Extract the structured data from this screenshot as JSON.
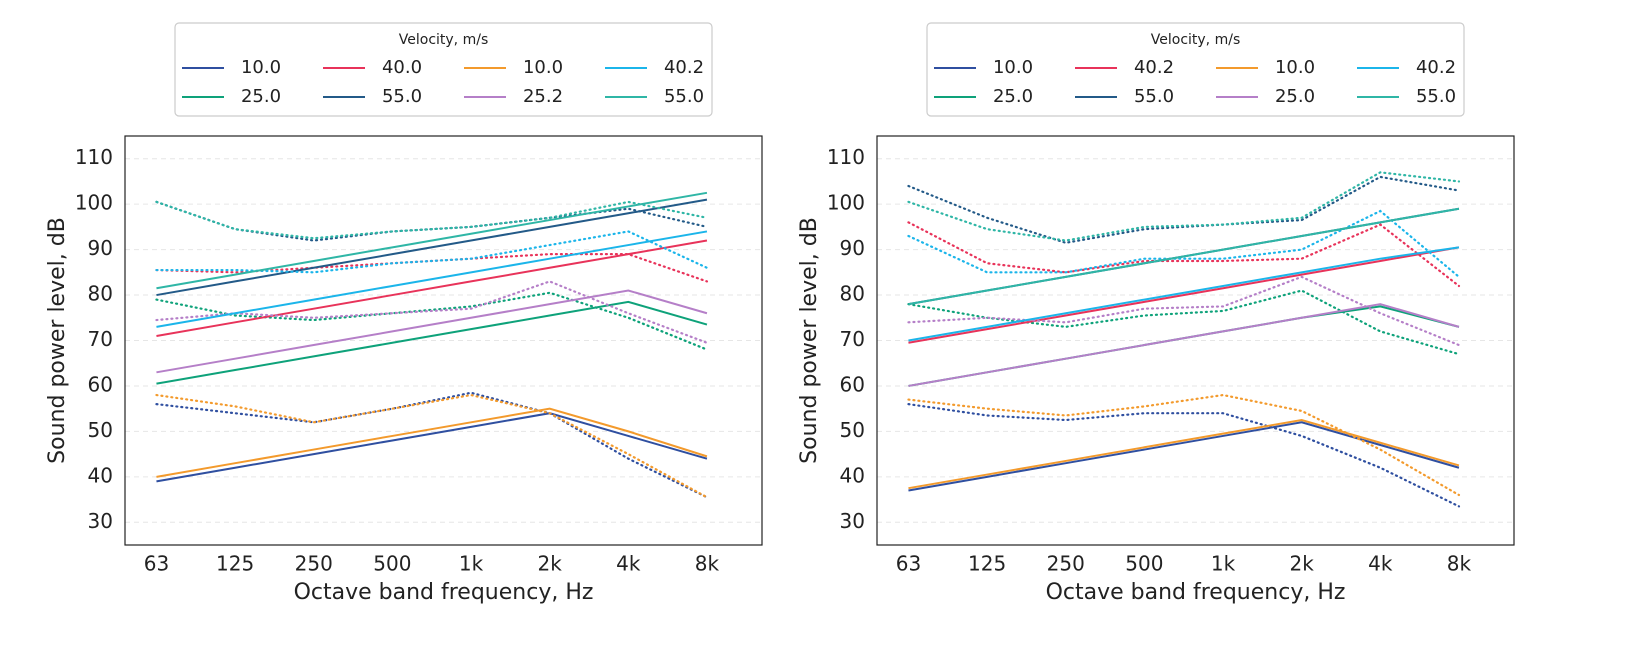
{
  "chart_data": [
    {
      "type": "line",
      "legend_title": "Velocity, m/s",
      "xlabel": "Octave band frequency, Hz",
      "ylabel": "Sound power level, dB",
      "categories": [
        "63",
        "125",
        "250",
        "500",
        "1k",
        "2k",
        "4k",
        "8k"
      ],
      "ylim": [
        25,
        115
      ],
      "yticks": [
        30,
        40,
        50,
        60,
        70,
        80,
        90,
        100,
        110
      ],
      "grid": true,
      "series": [
        {
          "name": "10.0",
          "color": "#2f4fa0",
          "values": [
            39,
            42,
            45,
            48,
            51,
            54,
            49,
            44
          ],
          "dotted": [
            56,
            54,
            52,
            55,
            58.5,
            54,
            44,
            35.5
          ]
        },
        {
          "name": "25.0",
          "color": "#0ea27a",
          "values": [
            60.5,
            63.5,
            66.5,
            69.5,
            72.5,
            75.5,
            78.5,
            73.5
          ],
          "dotted": [
            79,
            75.5,
            74.5,
            76,
            77.5,
            80.5,
            75,
            68
          ]
        },
        {
          "name": "40.0",
          "color": "#e8335a",
          "values": [
            71,
            74,
            77,
            80,
            83,
            86,
            89,
            92
          ],
          "dotted": [
            85.5,
            85,
            86,
            87,
            88,
            89,
            89,
            83
          ]
        },
        {
          "name": "55.0",
          "color": "#235a88",
          "values": [
            80,
            83,
            86,
            89,
            92,
            95,
            98,
            101
          ],
          "dotted": [
            100.5,
            94.5,
            92,
            94,
            95,
            97,
            99,
            95
          ]
        },
        {
          "name": "10.0",
          "color": "#f39a2c",
          "values": [
            40,
            43,
            46,
            49,
            52,
            55,
            50,
            44.5
          ],
          "dotted": [
            58,
            55.5,
            52,
            55,
            58,
            54,
            45,
            35.5
          ]
        },
        {
          "name": "25.2",
          "color": "#b57fc8",
          "values": [
            63,
            66,
            69,
            72,
            75,
            78,
            81,
            76
          ],
          "dotted": [
            74.5,
            76,
            75,
            76,
            77,
            83,
            76,
            69.5
          ]
        },
        {
          "name": "40.2",
          "color": "#1bb5ea",
          "values": [
            73,
            76,
            79,
            82,
            85,
            88,
            91,
            94
          ],
          "dotted": [
            85.5,
            85.5,
            85,
            87,
            88,
            91,
            94,
            86
          ]
        },
        {
          "name": "55.0",
          "color": "#2fb6a6",
          "values": [
            81.5,
            84.5,
            87.5,
            90.5,
            93.5,
            96.5,
            99.5,
            102.5
          ],
          "dotted": [
            100.5,
            94.5,
            92.5,
            94,
            95,
            97,
            100.5,
            97
          ]
        }
      ]
    },
    {
      "type": "line",
      "legend_title": "Velocity, m/s",
      "xlabel": "Octave band frequency, Hz",
      "ylabel": "Sound power level, dB",
      "categories": [
        "63",
        "125",
        "250",
        "500",
        "1k",
        "2k",
        "4k",
        "8k"
      ],
      "ylim": [
        25,
        115
      ],
      "yticks": [
        30,
        40,
        50,
        60,
        70,
        80,
        90,
        100,
        110
      ],
      "grid": true,
      "series": [
        {
          "name": "10.0",
          "color": "#2f4fa0",
          "values": [
            37,
            40,
            43,
            46,
            49,
            52,
            47,
            42
          ],
          "dotted": [
            56,
            53.5,
            52.5,
            54,
            54,
            49,
            42,
            33.5
          ]
        },
        {
          "name": "25.0",
          "color": "#0ea27a",
          "values": [
            60,
            63,
            66,
            69,
            72,
            75,
            77.5,
            73
          ],
          "dotted": [
            78,
            75,
            73,
            75.5,
            76.5,
            81,
            72,
            67
          ]
        },
        {
          "name": "40.2",
          "color": "#e8335a",
          "values": [
            69.5,
            72.5,
            75.5,
            78.5,
            81.5,
            84.5,
            87.5,
            90.5
          ],
          "dotted": [
            96,
            87,
            85,
            87.5,
            87.5,
            88,
            95.5,
            82
          ]
        },
        {
          "name": "55.0",
          "color": "#235a88",
          "values": [
            78,
            81,
            84,
            87,
            90,
            93,
            96,
            99
          ],
          "dotted": [
            104,
            97,
            91.5,
            94.5,
            95.5,
            96.5,
            106,
            103
          ]
        },
        {
          "name": "10.0",
          "color": "#f39a2c",
          "values": [
            37.5,
            40.5,
            43.5,
            46.5,
            49.5,
            52.5,
            47.5,
            42.5
          ],
          "dotted": [
            57,
            55,
            53.5,
            55.5,
            58,
            54.5,
            46,
            36
          ]
        },
        {
          "name": "25.0",
          "color": "#b57fc8",
          "values": [
            60,
            63,
            66,
            69,
            72,
            75,
            78,
            73
          ],
          "dotted": [
            74,
            75,
            74,
            77,
            77.5,
            84,
            76,
            69
          ]
        },
        {
          "name": "40.2",
          "color": "#1bb5ea",
          "values": [
            70,
            73,
            76,
            79,
            82,
            85,
            88,
            90.5
          ],
          "dotted": [
            93,
            85,
            85,
            88,
            88,
            90,
            98.5,
            84
          ]
        },
        {
          "name": "55.0",
          "color": "#2fb6a6",
          "values": [
            78,
            81,
            84,
            87,
            90,
            93,
            96,
            99
          ],
          "dotted": [
            100.5,
            94.5,
            92,
            95,
            95.5,
            97,
            107,
            105
          ]
        }
      ]
    }
  ]
}
